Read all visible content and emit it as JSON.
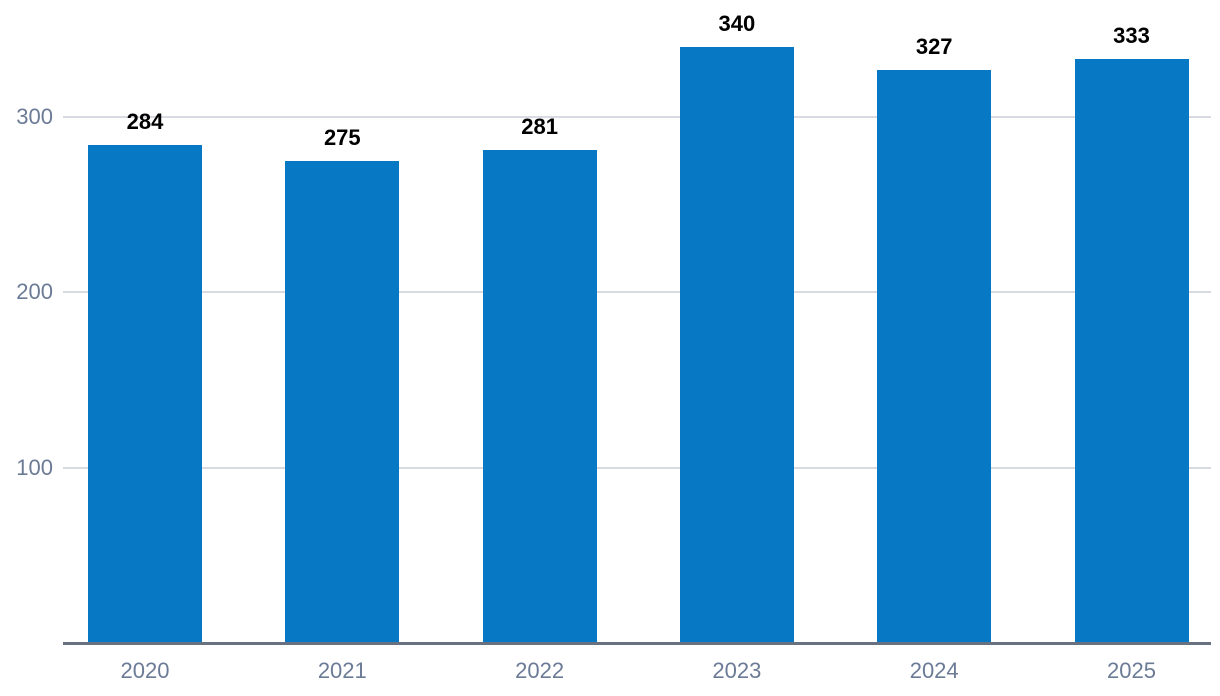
{
  "chart_data": {
    "type": "bar",
    "title": "",
    "xlabel": "",
    "ylabel": "",
    "categories": [
      "2020",
      "2021",
      "2022",
      "2023",
      "2024",
      "2025"
    ],
    "values": [
      284,
      275,
      281,
      340,
      327,
      333
    ],
    "value_labels": [
      "284",
      "275",
      "281",
      "340",
      "327",
      "333"
    ],
    "y_ticks": [
      100,
      200,
      300
    ],
    "y_tick_labels": [
      "100",
      "200",
      "300"
    ],
    "ylim": [
      0,
      367
    ],
    "grid": "horizontal-only",
    "legend": "none",
    "colors": {
      "bar": "#0778c4",
      "value_label": "#000000",
      "axis_tick_label": "#6b7b96",
      "gridline": "#d8dbe2",
      "axis_line": "#67717f",
      "background": "#ffffff"
    }
  }
}
